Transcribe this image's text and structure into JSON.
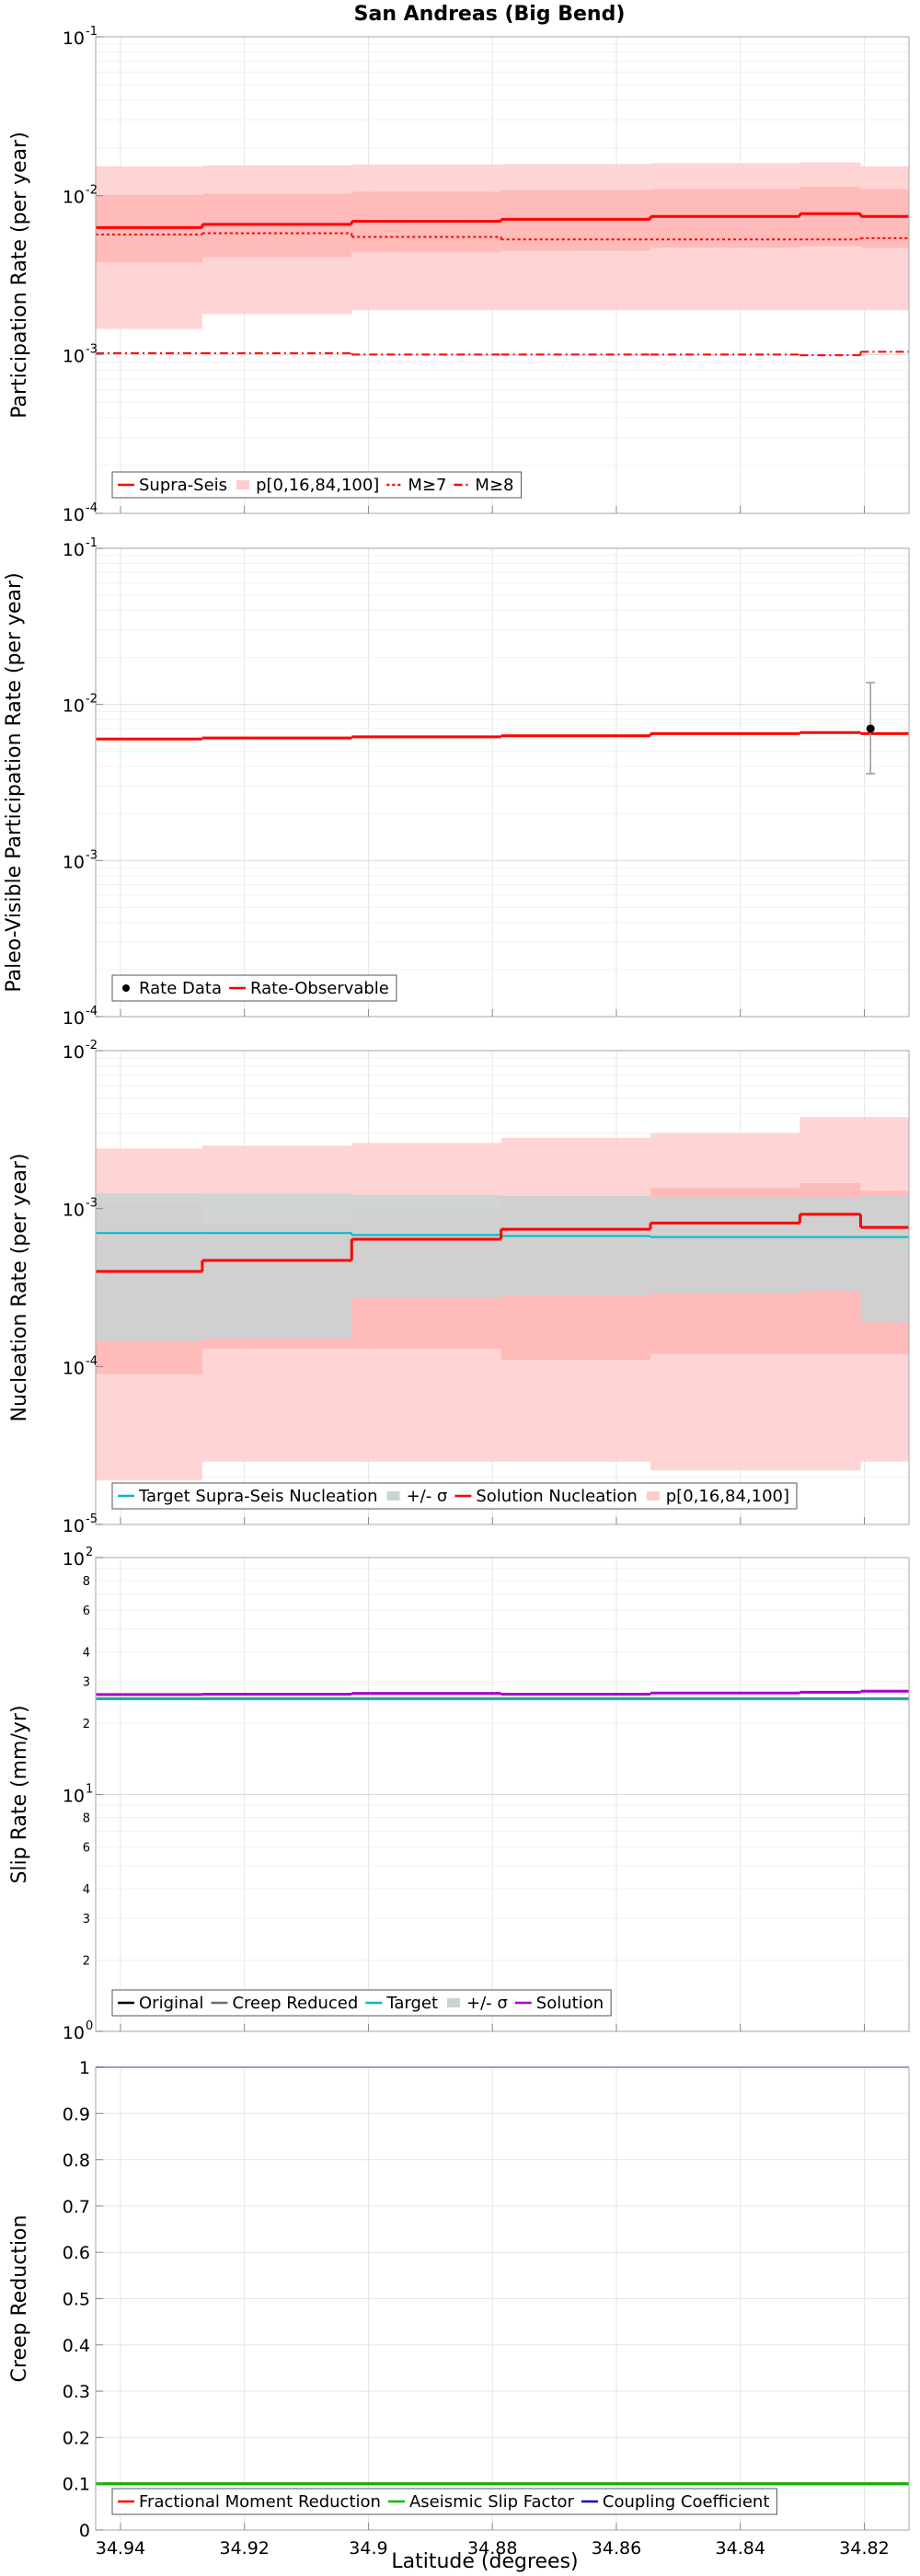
{
  "title": "San Andreas (Big Bend)",
  "xlabel": "Latitude (degrees)",
  "x_ticks": [
    "34.94",
    "34.92",
    "34.9",
    "34.88",
    "34.86",
    "34.84",
    "34.82"
  ],
  "x_tick_values": [
    34.94,
    34.92,
    34.9,
    34.88,
    34.86,
    34.84,
    34.82
  ],
  "xlim": [
    34.944,
    34.8128
  ],
  "colors": {
    "red": "#ff0000",
    "pink": "#ffcccc",
    "pink_inner": "#ffb2b2",
    "teal": "#00b8c8",
    "gray_band": "#c8d4d4",
    "gray": "#707070",
    "purple": "#aa00cc",
    "green": "#00bb00",
    "blue": "#0000cc"
  },
  "chart_data": [
    {
      "type": "line",
      "ylabel": "Participation Rate (per year)",
      "yscale": "log",
      "ylim": [
        0.0001,
        0.1
      ],
      "y_ticks": [
        {
          "v": 0.1,
          "b": "10",
          "e": "-1"
        },
        {
          "v": 0.01,
          "b": "10",
          "e": "-2"
        },
        {
          "v": 0.001,
          "b": "10",
          "e": "-3"
        },
        {
          "v": 0.0001,
          "b": "10",
          "e": "-4"
        }
      ],
      "x_bins": [
        34.944,
        34.9268,
        34.9027,
        34.8786,
        34.8545,
        34.8304,
        34.8206,
        34.8128
      ],
      "series": [
        {
          "name": "Supra-Seis",
          "style": "solid",
          "values": [
            0.0063,
            0.0066,
            0.0069,
            0.0071,
            0.0074,
            0.0077,
            0.0074
          ]
        },
        {
          "name": "M≥7",
          "style": "dotted",
          "values": [
            0.0057,
            0.0058,
            0.0055,
            0.0053,
            0.0053,
            0.0053,
            0.0054
          ]
        },
        {
          "name": "M≥8",
          "style": "dashdot",
          "values": [
            0.00102,
            0.00102,
            0.001,
            0.001,
            0.001,
            0.00099,
            0.00104
          ]
        }
      ],
      "band": {
        "name": "p[0,16,84,100]",
        "p0": [
          0.00145,
          0.0018,
          0.0019,
          0.0019,
          0.0019,
          0.0019,
          0.0019
        ],
        "p16": [
          0.0038,
          0.0041,
          0.0044,
          0.0045,
          0.0047,
          0.0048,
          0.0047
        ],
        "p84": [
          0.0101,
          0.0103,
          0.0106,
          0.0108,
          0.011,
          0.0114,
          0.011
        ],
        "p100": [
          0.0153,
          0.0155,
          0.0157,
          0.0158,
          0.016,
          0.0162,
          0.0153
        ]
      },
      "legend": [
        "Supra-Seis",
        "p[0,16,84,100]",
        "M≥7",
        "M≥8"
      ],
      "legend_loc": "bottom-left"
    },
    {
      "type": "line",
      "ylabel": "Paleo-Visible Participation Rate (per year)",
      "yscale": "log",
      "ylim": [
        0.0001,
        0.1
      ],
      "y_ticks": [
        {
          "v": 0.1,
          "b": "10",
          "e": "-1"
        },
        {
          "v": 0.01,
          "b": "10",
          "e": "-2"
        },
        {
          "v": 0.001,
          "b": "10",
          "e": "-3"
        },
        {
          "v": 0.0001,
          "b": "10",
          "e": "-4"
        }
      ],
      "x_bins": [
        34.944,
        34.9268,
        34.9027,
        34.8786,
        34.8545,
        34.8304,
        34.8206,
        34.8128
      ],
      "series": [
        {
          "name": "Rate-Observable",
          "style": "solid",
          "values": [
            0.006,
            0.0061,
            0.0062,
            0.0063,
            0.0065,
            0.0066,
            0.0065
          ]
        }
      ],
      "points": [
        {
          "name": "Rate Data",
          "x": 34.819,
          "y": 0.007,
          "err_low": 0.0036,
          "err_high": 0.0138
        }
      ],
      "legend": [
        "Rate Data",
        "Rate-Observable"
      ],
      "legend_loc": "bottom-left"
    },
    {
      "type": "line",
      "ylabel": "Nucleation Rate (per year)",
      "yscale": "log",
      "ylim": [
        1e-05,
        0.01
      ],
      "y_ticks": [
        {
          "v": 0.01,
          "b": "10",
          "e": "-2"
        },
        {
          "v": 0.001,
          "b": "10",
          "e": "-3"
        },
        {
          "v": 0.0001,
          "b": "10",
          "e": "-4"
        },
        {
          "v": 1e-05,
          "b": "10",
          "e": "-5"
        }
      ],
      "x_bins": [
        34.944,
        34.9268,
        34.9027,
        34.8786,
        34.8545,
        34.8304,
        34.8206,
        34.8128
      ],
      "target": {
        "name": "Target Supra-Seis Nucleation",
        "values": [
          0.0007,
          0.0007,
          0.00068,
          0.00067,
          0.00066,
          0.00066,
          0.00066
        ]
      },
      "sigma": {
        "name": "+/- σ",
        "low": [
          0.000145,
          0.00015,
          0.00027,
          0.00028,
          0.00029,
          0.0003,
          0.00019
        ],
        "high": [
          0.00125,
          0.00124,
          0.00122,
          0.0012,
          0.00118,
          0.00118,
          0.00122
        ]
      },
      "series": [
        {
          "name": "Solution Nucleation",
          "style": "solid",
          "values": [
            0.0004,
            0.00047,
            0.00064,
            0.00074,
            0.00081,
            0.00092,
            0.00076
          ]
        }
      ],
      "band": {
        "name": "p[0,16,84,100]",
        "p0": [
          1.9e-05,
          2.5e-05,
          2.5e-05,
          2.5e-05,
          2.2e-05,
          2.2e-05,
          2.5e-05
        ],
        "p16": [
          9e-05,
          0.00013,
          0.00013,
          0.00011,
          0.00012,
          0.00012,
          0.00012
        ],
        "p84": [
          0.0011,
          0.0008,
          0.00098,
          0.0012,
          0.00135,
          0.00145,
          0.0013
        ],
        "p100": [
          0.0024,
          0.0025,
          0.0026,
          0.0028,
          0.003,
          0.0038,
          0.0038
        ]
      },
      "legend": [
        "Target Supra-Seis Nucleation",
        "+/- σ",
        "Solution Nucleation",
        "p[0,16,84,100]"
      ],
      "legend_loc": "bottom-left"
    },
    {
      "type": "line",
      "ylabel": "Slip Rate (mm/yr)",
      "yscale": "log",
      "ylim": [
        1,
        100
      ],
      "y_ticks": [
        {
          "v": 100,
          "b": "10",
          "e": "2"
        },
        {
          "v": 10,
          "b": "10",
          "e": "1"
        },
        {
          "v": 1,
          "b": "10",
          "e": "0"
        }
      ],
      "minor_labels": [
        {
          "v": 80,
          "t": "8"
        },
        {
          "v": 60,
          "t": "6"
        },
        {
          "v": 40,
          "t": "4"
        },
        {
          "v": 30,
          "t": "3"
        },
        {
          "v": 20,
          "t": "2"
        },
        {
          "v": 8,
          "t": "8"
        },
        {
          "v": 6,
          "t": "6"
        },
        {
          "v": 4,
          "t": "4"
        },
        {
          "v": 3,
          "t": "3"
        },
        {
          "v": 2,
          "t": "2"
        }
      ],
      "x_bins": [
        34.944,
        34.9268,
        34.9027,
        34.8786,
        34.8545,
        34.8304,
        34.8206,
        34.8128
      ],
      "series": [
        {
          "name": "Original",
          "color_key": "black",
          "values": [
            25.4,
            25.4,
            25.4,
            25.4,
            25.4,
            25.4,
            25.4
          ]
        },
        {
          "name": "Creep Reduced",
          "color_key": "gray",
          "values": [
            25.4,
            25.4,
            25.4,
            25.4,
            25.4,
            25.4,
            25.4
          ]
        },
        {
          "name": "Target",
          "color_key": "teal",
          "values": [
            25.2,
            25.2,
            25.2,
            25.2,
            25.2,
            25.2,
            25.2
          ]
        },
        {
          "name": "Solution",
          "color_key": "purple",
          "values": [
            26.4,
            26.5,
            26.7,
            26.5,
            26.8,
            27.0,
            27.3
          ]
        }
      ],
      "legend": [
        "Original",
        "Creep Reduced",
        "Target",
        "+/- σ",
        "Solution"
      ],
      "legend_loc": "bottom-left"
    },
    {
      "type": "line",
      "ylabel": "Creep Reduction",
      "yscale": "linear",
      "ylim": [
        0,
        1
      ],
      "y_ticks": [
        {
          "v": 0,
          "t": "0"
        },
        {
          "v": 0.1,
          "t": "0.1"
        },
        {
          "v": 0.2,
          "t": "0.2"
        },
        {
          "v": 0.3,
          "t": "0.3"
        },
        {
          "v": 0.4,
          "t": "0.4"
        },
        {
          "v": 0.5,
          "t": "0.5"
        },
        {
          "v": 0.6,
          "t": "0.6"
        },
        {
          "v": 0.7,
          "t": "0.7"
        },
        {
          "v": 0.8,
          "t": "0.8"
        },
        {
          "v": 0.9,
          "t": "0.9"
        },
        {
          "v": 1,
          "t": "1"
        }
      ],
      "series": [
        {
          "name": "Fractional Moment Reduction",
          "color_key": "red",
          "value": 0.1
        },
        {
          "name": "Aseismic Slip Factor",
          "color_key": "green",
          "value": 0.1
        },
        {
          "name": "Coupling Coefficient",
          "color_key": "blue",
          "value": 1.0
        }
      ],
      "legend": [
        "Fractional Moment Reduction",
        "Aseismic Slip Factor",
        "Coupling Coefficient"
      ],
      "legend_loc": "bottom-left"
    }
  ]
}
